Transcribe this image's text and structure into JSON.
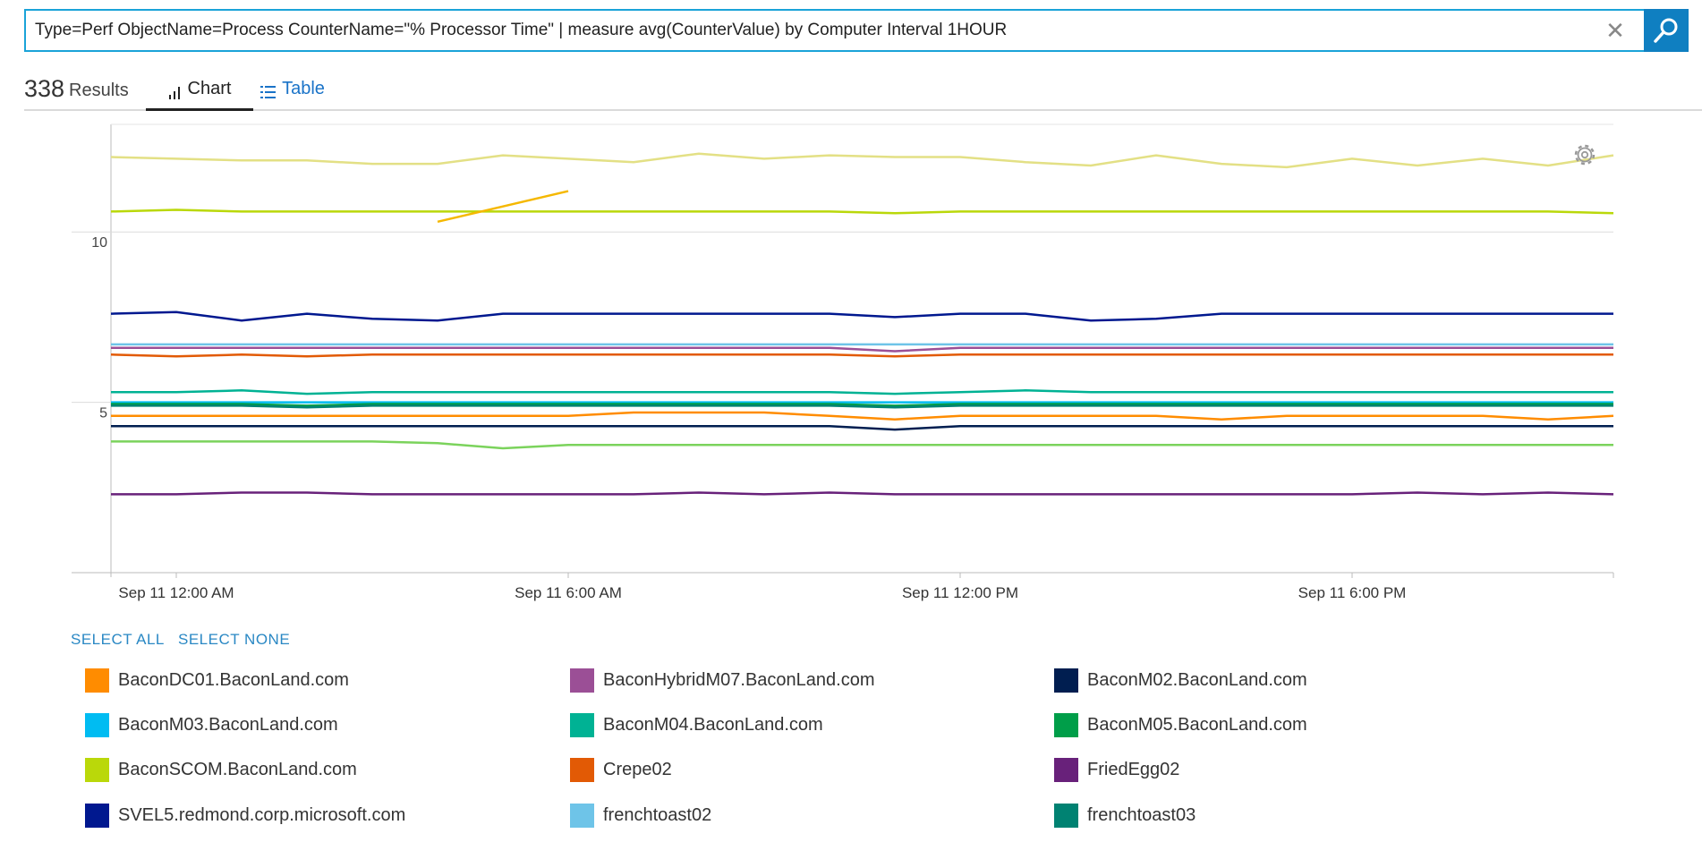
{
  "search": {
    "query": "Type=Perf ObjectName=Process CounterName=\"% Processor Time\" | measure avg(CounterValue) by Computer Interval 1HOUR"
  },
  "results": {
    "count": "338",
    "label": "Results"
  },
  "tabs": [
    {
      "label": "Chart",
      "icon": "bar-chart-icon",
      "active": true
    },
    {
      "label": "Table",
      "icon": "table-list-icon",
      "active": false
    }
  ],
  "legend_controls": {
    "select_all": "SELECT ALL",
    "select_none": "SELECT NONE"
  },
  "chart_data": {
    "type": "line",
    "y_ticks": [
      "10",
      "5"
    ],
    "ylim": [
      0,
      13
    ],
    "x_ticks": [
      "Sep 11 12:00 AM",
      "Sep 11 6:00 AM",
      "Sep 11 12:00 PM",
      "Sep 11 6:00 PM"
    ],
    "x_tick_hours": [
      0,
      6,
      12,
      18
    ],
    "x_range_hours": [
      -1,
      22
    ],
    "grid": true,
    "series": [
      {
        "name": "BaconDC01.BaconLand.com",
        "color": "#ff8c00",
        "values": [
          4.6,
          4.6,
          4.6,
          4.6,
          4.6,
          4.6,
          4.6,
          4.6,
          4.7,
          4.7,
          4.7,
          4.6,
          4.5,
          4.6,
          4.6,
          4.6,
          4.6,
          4.5,
          4.6,
          4.6,
          4.6,
          4.6,
          4.5,
          4.6
        ]
      },
      {
        "name": "BaconHybridM07.BaconLand.com",
        "color": "#9b4f96",
        "values": [
          6.6,
          6.6,
          6.6,
          6.6,
          6.6,
          6.6,
          6.6,
          6.6,
          6.6,
          6.6,
          6.6,
          6.6,
          6.5,
          6.6,
          6.6,
          6.6,
          6.6,
          6.6,
          6.6,
          6.6,
          6.6,
          6.6,
          6.6,
          6.6
        ]
      },
      {
        "name": "BaconM02.BaconLand.com",
        "color": "#001e50",
        "values": [
          4.3,
          4.3,
          4.3,
          4.3,
          4.3,
          4.3,
          4.3,
          4.3,
          4.3,
          4.3,
          4.3,
          4.3,
          4.2,
          4.3,
          4.3,
          4.3,
          4.3,
          4.3,
          4.3,
          4.3,
          4.3,
          4.3,
          4.3,
          4.3
        ]
      },
      {
        "name": "BaconM03.BaconLand.com",
        "color": "#00bcf2",
        "values": [
          5.0,
          5.0,
          5.0,
          5.0,
          5.0,
          5.0,
          5.0,
          5.0,
          5.0,
          5.0,
          5.0,
          5.0,
          5.0,
          5.0,
          5.0,
          5.0,
          5.0,
          5.0,
          5.0,
          5.0,
          5.0,
          5.0,
          5.0,
          5.0
        ]
      },
      {
        "name": "BaconM04.BaconLand.com",
        "color": "#00b294",
        "values": [
          5.3,
          5.3,
          5.35,
          5.25,
          5.3,
          5.3,
          5.3,
          5.3,
          5.3,
          5.3,
          5.3,
          5.3,
          5.25,
          5.3,
          5.35,
          5.3,
          5.3,
          5.3,
          5.3,
          5.3,
          5.3,
          5.3,
          5.3,
          5.3
        ]
      },
      {
        "name": "BaconM05.BaconLand.com",
        "color": "#009e49",
        "values": [
          4.95,
          4.95,
          4.95,
          4.9,
          4.95,
          4.95,
          4.95,
          4.95,
          4.95,
          4.95,
          4.95,
          4.95,
          4.9,
          4.95,
          4.95,
          4.95,
          4.95,
          4.95,
          4.95,
          4.95,
          4.95,
          4.95,
          4.95,
          4.95
        ]
      },
      {
        "name": "BaconSCOM.BaconLand.com",
        "color": "#bad80a",
        "values": [
          10.6,
          10.65,
          10.6,
          10.6,
          10.6,
          10.6,
          10.6,
          10.6,
          10.6,
          10.6,
          10.6,
          10.6,
          10.55,
          10.6,
          10.6,
          10.6,
          10.6,
          10.6,
          10.6,
          10.6,
          10.6,
          10.6,
          10.6,
          10.55
        ]
      },
      {
        "name": "Crepe02",
        "color": "#e25a05",
        "values": [
          6.4,
          6.35,
          6.4,
          6.35,
          6.4,
          6.4,
          6.4,
          6.4,
          6.4,
          6.4,
          6.4,
          6.4,
          6.35,
          6.4,
          6.4,
          6.4,
          6.4,
          6.4,
          6.4,
          6.4,
          6.4,
          6.4,
          6.4,
          6.4
        ]
      },
      {
        "name": "FriedEgg02",
        "color": "#68217a",
        "values": [
          2.3,
          2.3,
          2.35,
          2.35,
          2.3,
          2.3,
          2.3,
          2.3,
          2.3,
          2.35,
          2.3,
          2.35,
          2.3,
          2.3,
          2.3,
          2.3,
          2.3,
          2.3,
          2.3,
          2.3,
          2.35,
          2.3,
          2.35,
          2.3
        ]
      },
      {
        "name": "SVEL5.redmond.corp.microsoft.com",
        "color": "#00188f",
        "values": [
          7.6,
          7.65,
          7.4,
          7.6,
          7.45,
          7.4,
          7.6,
          7.6,
          7.6,
          7.6,
          7.6,
          7.6,
          7.5,
          7.6,
          7.6,
          7.4,
          7.45,
          7.6,
          7.6,
          7.6,
          7.6,
          7.6,
          7.6,
          7.6
        ]
      },
      {
        "name": "frenchtoast02",
        "color": "#6ec4e8",
        "values": [
          6.7,
          6.7,
          6.7,
          6.7,
          6.7,
          6.7,
          6.7,
          6.7,
          6.7,
          6.7,
          6.7,
          6.7,
          6.7,
          6.7,
          6.7,
          6.7,
          6.7,
          6.7,
          6.7,
          6.7,
          6.7,
          6.7,
          6.7,
          6.7
        ]
      },
      {
        "name": "frenchtoast03",
        "color": "#008272",
        "values": [
          4.9,
          4.9,
          4.9,
          4.85,
          4.9,
          4.9,
          4.9,
          4.9,
          4.9,
          4.9,
          4.9,
          4.9,
          4.85,
          4.9,
          4.9,
          4.9,
          4.9,
          4.9,
          4.9,
          4.9,
          4.9,
          4.9,
          4.9,
          4.9
        ]
      },
      {
        "name": "",
        "color": "#e3e085",
        "values": [
          12.2,
          12.15,
          12.1,
          12.1,
          12.0,
          12.0,
          12.25,
          12.15,
          12.05,
          12.3,
          12.15,
          12.25,
          12.2,
          12.2,
          12.05,
          11.95,
          12.25,
          12.0,
          11.9,
          12.15,
          11.95,
          12.15,
          11.95,
          12.25
        ]
      },
      {
        "name": "",
        "color": "#7bd35c",
        "values": [
          3.85,
          3.85,
          3.85,
          3.85,
          3.85,
          3.8,
          3.65,
          3.75,
          3.75,
          3.75,
          3.75,
          3.75,
          3.75,
          3.75,
          3.75,
          3.75,
          3.75,
          3.75,
          3.75,
          3.75,
          3.75,
          3.75,
          3.75,
          3.75
        ]
      }
    ],
    "highlight_segment": {
      "color": "#f5b800",
      "x": [
        4.0,
        6.0
      ],
      "y": [
        10.3,
        11.2
      ]
    }
  }
}
